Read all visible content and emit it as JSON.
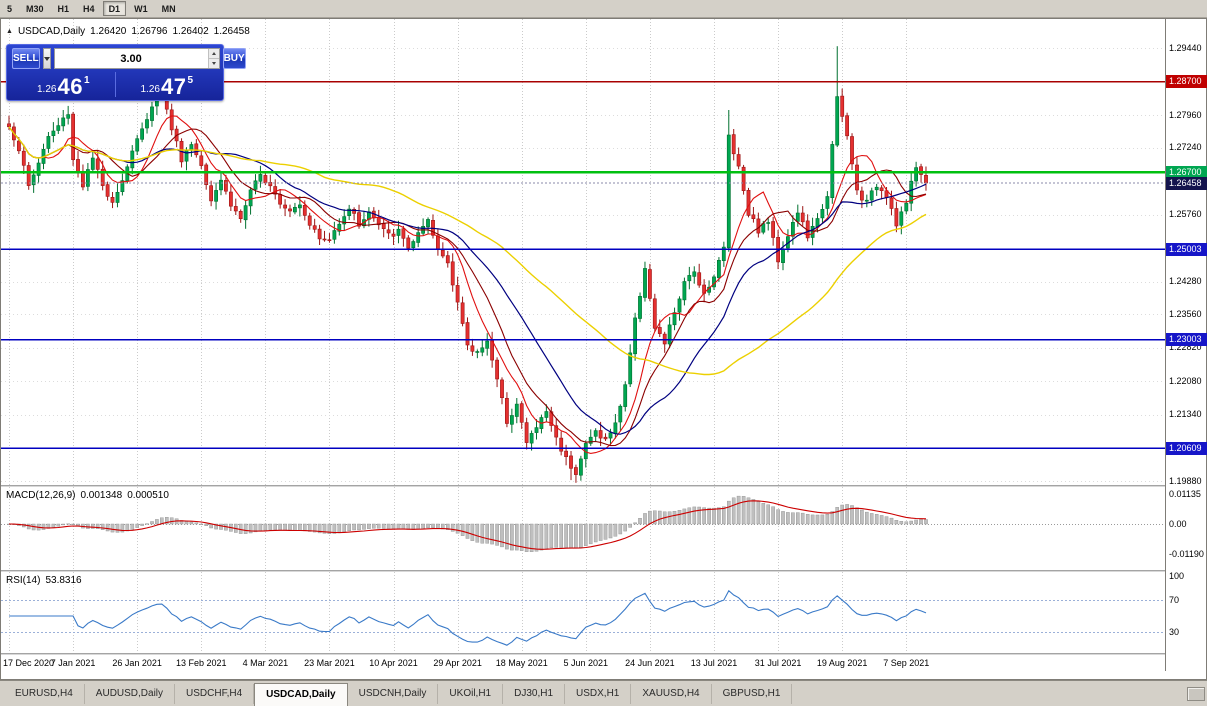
{
  "toolbar": {
    "timeframes": [
      "5",
      "M30",
      "H1",
      "H4",
      "D1",
      "W1",
      "MN"
    ],
    "active": "D1"
  },
  "chart_header": {
    "marker_icon": "▲",
    "symbol": "USDCAD,Daily",
    "open": "1.26420",
    "high": "1.26796",
    "low": "1.26402",
    "close": "1.26458"
  },
  "trade_panel": {
    "sell_label": "SELL",
    "buy_label": "BUY",
    "volume": "3.00",
    "sell_price": {
      "prefix": "1.26",
      "big": "46",
      "sup": "1"
    },
    "buy_price": {
      "prefix": "1.26",
      "big": "47",
      "sup": "5"
    }
  },
  "indicators": {
    "macd_label": "MACD(12,26,9)",
    "macd_value1": "0.001348",
    "macd_value2": "0.000510",
    "rsi_label": "RSI(14)",
    "rsi_value": "53.8316"
  },
  "tabs": {
    "items": [
      "EURUSD,H4",
      "AUDUSD,Daily",
      "USDCHF,H4",
      "USDCAD,Daily",
      "USDCNH,Daily",
      "UKOil,H1",
      "DJ30,H1",
      "USDX,H1",
      "XAUUSD,H4",
      "GBPUSD,H1"
    ],
    "active": "USDCAD,Daily"
  },
  "chart_data": {
    "type": "candlestick",
    "symbol": "USDCAD",
    "timeframe": "Daily",
    "current_bar": {
      "open": 1.2642,
      "high": 1.26796,
      "low": 1.26402,
      "close": 1.26458
    },
    "x_axis_labels": [
      "17 Dec 2020",
      "7 Jan 2021",
      "26 Jan 2021",
      "13 Feb 2021",
      "4 Mar 2021",
      "23 Mar 2021",
      "10 Apr 2021",
      "29 Apr 2021",
      "18 May 2021",
      "5 Jun 2021",
      "24 Jun 2021",
      "13 Jul 2021",
      "31 Jul 2021",
      "19 Aug 2021",
      "7 Sep 2021"
    ],
    "x_tick_days": [
      0,
      13,
      26,
      39,
      52,
      65,
      78,
      91,
      104,
      117,
      130,
      143,
      156,
      169,
      182
    ],
    "y_axis_labels": [
      "1.29440",
      "1.27960",
      "1.27240",
      "1.25760",
      "1.24280",
      "1.23560",
      "1.22820",
      "1.22080",
      "1.21340",
      "1.19880"
    ],
    "price_levels": [
      {
        "label": "1.28700",
        "price": 1.287,
        "line_color": "#a80000",
        "badge_color": "#c00000",
        "width": 1.5
      },
      {
        "label": "1.26700",
        "price": 1.267,
        "line_color": "#00c010",
        "badge_color": "#00a651",
        "width": 2.5
      },
      {
        "label": "1.25003",
        "price": 1.25003,
        "line_color": "#0000c0",
        "badge_color": "#1616c8",
        "width": 1.5
      },
      {
        "label": "1.23003",
        "price": 1.23003,
        "line_color": "#0000c0",
        "badge_color": "#1616c8",
        "width": 1.5
      },
      {
        "label": "1.20609",
        "price": 1.20609,
        "line_color": "#0000c0",
        "badge_color": "#1616c8",
        "width": 1.5
      }
    ],
    "bid": {
      "label": "1.26458",
      "price": 1.26458,
      "badge_color": "#14144e"
    },
    "candle_colors": {
      "up_fill": "#00a651",
      "up_stroke": "#00702f",
      "down_fill": "#e43030",
      "down_stroke": "#9b1515"
    },
    "moving_averages": [
      {
        "name": "fast-red",
        "window": 8,
        "color": "#e01010",
        "width": 1.1
      },
      {
        "name": "fast-maroon",
        "window": 13,
        "color": "#8b0000",
        "width": 1.1
      },
      {
        "name": "mid-navy",
        "window": 24,
        "color": "#000080",
        "width": 1.2
      },
      {
        "name": "slow-yellow",
        "window": 52,
        "color": "#ecd000",
        "width": 1.4
      }
    ],
    "close_anchors": [
      [
        0,
        1.277
      ],
      [
        2,
        1.2722
      ],
      [
        4,
        1.2638
      ],
      [
        6,
        1.2692
      ],
      [
        8,
        1.2748
      ],
      [
        10,
        1.2772
      ],
      [
        12,
        1.2802
      ],
      [
        13,
        1.2698
      ],
      [
        15,
        1.2642
      ],
      [
        17,
        1.27
      ],
      [
        19,
        1.2638
      ],
      [
        21,
        1.2608
      ],
      [
        23,
        1.2652
      ],
      [
        25,
        1.2718
      ],
      [
        27,
        1.2762
      ],
      [
        29,
        1.282
      ],
      [
        31,
        1.2842
      ],
      [
        33,
        1.2768
      ],
      [
        35,
        1.27
      ],
      [
        37,
        1.2732
      ],
      [
        39,
        1.2688
      ],
      [
        41,
        1.2612
      ],
      [
        43,
        1.2655
      ],
      [
        45,
        1.2598
      ],
      [
        47,
        1.2568
      ],
      [
        49,
        1.2625
      ],
      [
        51,
        1.2662
      ],
      [
        53,
        1.2645
      ],
      [
        55,
        1.2605
      ],
      [
        57,
        1.2588
      ],
      [
        59,
        1.2602
      ],
      [
        61,
        1.2558
      ],
      [
        63,
        1.2522
      ],
      [
        65,
        1.2518
      ],
      [
        67,
        1.2562
      ],
      [
        69,
        1.2592
      ],
      [
        71,
        1.2555
      ],
      [
        73,
        1.2582
      ],
      [
        75,
        1.2552
      ],
      [
        77,
        1.253
      ],
      [
        79,
        1.2538
      ],
      [
        81,
        1.2505
      ],
      [
        83,
        1.2532
      ],
      [
        85,
        1.2558
      ],
      [
        87,
        1.2498
      ],
      [
        89,
        1.2472
      ],
      [
        91,
        1.2385
      ],
      [
        93,
        1.2282
      ],
      [
        95,
        1.2272
      ],
      [
        97,
        1.2302
      ],
      [
        99,
        1.2208
      ],
      [
        101,
        1.2122
      ],
      [
        103,
        1.2158
      ],
      [
        105,
        1.2072
      ],
      [
        107,
        1.2108
      ],
      [
        109,
        1.2142
      ],
      [
        111,
        1.2082
      ],
      [
        113,
        1.2038
      ],
      [
        115,
        1.2008
      ],
      [
        117,
        1.2068
      ],
      [
        119,
        1.2098
      ],
      [
        121,
        1.2078
      ],
      [
        123,
        1.2112
      ],
      [
        125,
        1.2202
      ],
      [
        127,
        1.2342
      ],
      [
        129,
        1.2462
      ],
      [
        131,
        1.2322
      ],
      [
        133,
        1.2292
      ],
      [
        135,
        1.2362
      ],
      [
        137,
        1.2422
      ],
      [
        139,
        1.2452
      ],
      [
        141,
        1.2402
      ],
      [
        143,
        1.2442
      ],
      [
        145,
        1.2502
      ],
      [
        146,
        1.2752
      ],
      [
        148,
        1.2682
      ],
      [
        150,
        1.2582
      ],
      [
        152,
        1.2542
      ],
      [
        154,
        1.2562
      ],
      [
        156,
        1.2478
      ],
      [
        158,
        1.2532
      ],
      [
        160,
        1.2582
      ],
      [
        162,
        1.2528
      ],
      [
        164,
        1.2562
      ],
      [
        166,
        1.2622
      ],
      [
        168,
        1.2832
      ],
      [
        170,
        1.2748
      ],
      [
        172,
        1.2628
      ],
      [
        174,
        1.2602
      ],
      [
        176,
        1.2642
      ],
      [
        178,
        1.2622
      ],
      [
        180,
        1.2558
      ],
      [
        182,
        1.2602
      ],
      [
        184,
        1.2682
      ],
      [
        186,
        1.26458
      ]
    ],
    "spikes": [
      {
        "day": 114,
        "low": 1.199
      },
      {
        "day": 146,
        "high": 1.2807
      },
      {
        "day": 168,
        "high": 1.2948
      }
    ],
    "macd": {
      "params": [
        12,
        26,
        9
      ],
      "display_values": [
        0.001348,
        0.00051
      ],
      "axis_labels": [
        "0.01135",
        "0.00",
        "-0.01190"
      ],
      "hist_color": "#bfbfbf",
      "signal_color": "#cc0000"
    },
    "rsi": {
      "period": 14,
      "value": 53.8316,
      "axis_labels": [
        "100",
        "70",
        "30"
      ],
      "levels": [
        70,
        30
      ],
      "line_color": "#3a7ac8",
      "level_color": "#9bb0d8"
    }
  }
}
